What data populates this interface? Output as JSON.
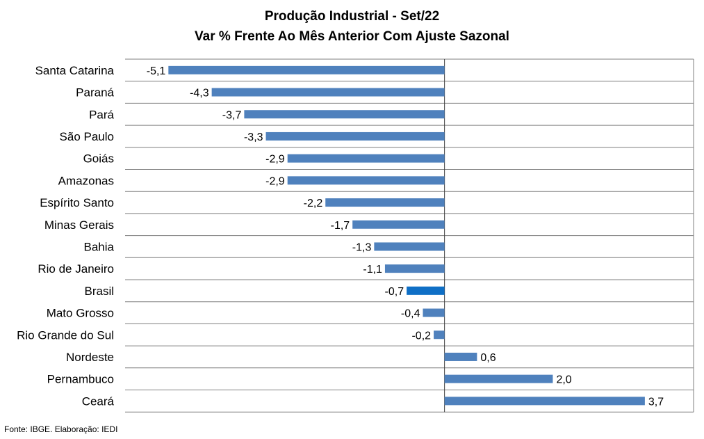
{
  "chart_data": {
    "type": "bar",
    "orientation": "horizontal",
    "title": "Produção Industrial - Set/22",
    "subtitle": "Var % Frente Ao Mês Anterior Com Ajuste Sazonal",
    "categories": [
      "Santa Catarina",
      "Paraná",
      "Pará",
      "São Paulo",
      "Goiás",
      "Amazonas",
      "Espírito Santo",
      "Minas Gerais",
      "Bahia",
      "Rio de Janeiro",
      "Brasil",
      "Mato Grosso",
      "Rio Grande do Sul",
      "Nordeste",
      "Pernambuco",
      "Ceará"
    ],
    "values": [
      -5.1,
      -4.3,
      -3.7,
      -3.3,
      -2.9,
      -2.9,
      -2.2,
      -1.7,
      -1.3,
      -1.1,
      -0.7,
      -0.4,
      -0.2,
      0.6,
      2.0,
      3.7
    ],
    "value_labels": [
      "-5,1",
      "-4,3",
      "-3,7",
      "-3,3",
      "-2,9",
      "-2,9",
      "-2,2",
      "-1,7",
      "-1,3",
      "-1,1",
      "-0,7",
      "-0,4",
      "-0,2",
      "0,6",
      "2,0",
      "3,7"
    ],
    "highlight_category": "Brasil",
    "colors": {
      "bar": "#4f81bd",
      "highlight": "#0f6fc6",
      "grid": "#7f7f7f"
    },
    "xlim": [
      -5.9,
      4.6
    ],
    "grid": true,
    "legend": "none"
  },
  "footer": {
    "source": "Fonte: IBGE. Elaboração: IEDI"
  }
}
